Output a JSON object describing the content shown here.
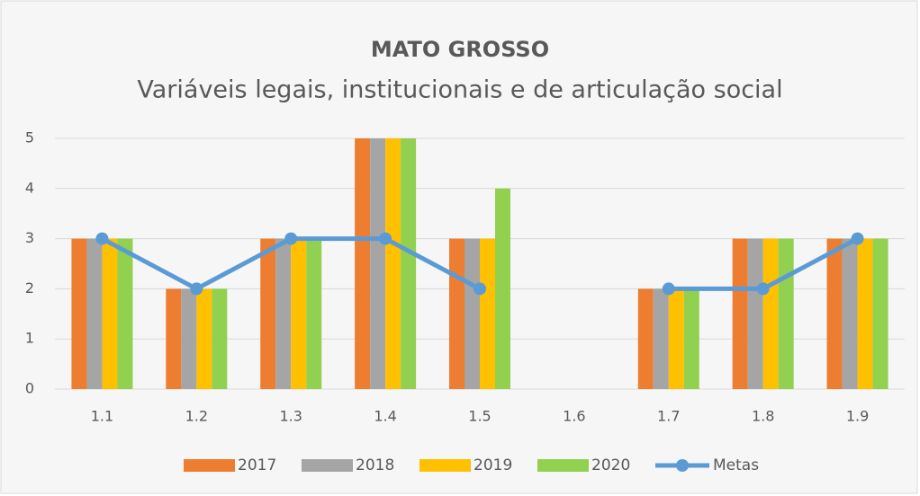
{
  "chart_data": {
    "type": "bar",
    "title": "MATO GROSSO",
    "subtitle": "Variáveis legais, institucionais e de articulação social",
    "categories": [
      "1.1",
      "1.2",
      "1.3",
      "1.4",
      "1.5",
      "1.6",
      "1.7",
      "1.8",
      "1.9"
    ],
    "series": [
      {
        "name": "2017",
        "color": "#ed7d31",
        "values": [
          3,
          2,
          3,
          5,
          3,
          0,
          2,
          3,
          3
        ]
      },
      {
        "name": "2018",
        "color": "#a5a5a5",
        "values": [
          3,
          2,
          3,
          5,
          3,
          0,
          2,
          3,
          3
        ]
      },
      {
        "name": "2019",
        "color": "#ffc000",
        "values": [
          3,
          2,
          3,
          5,
          3,
          0,
          2,
          3,
          3
        ]
      },
      {
        "name": "2020",
        "color": "#92d050",
        "values": [
          3,
          2,
          3,
          5,
          4,
          0,
          2,
          3,
          3
        ]
      },
      {
        "name": "Metas",
        "type": "line",
        "color": "#5b9bd5",
        "values": [
          3,
          2,
          3,
          3,
          2,
          null,
          2,
          2,
          3
        ]
      }
    ],
    "ylim": [
      0,
      5
    ],
    "yticks": [
      0,
      1,
      2,
      3,
      4,
      5
    ],
    "grid": true,
    "legend": "bottom"
  }
}
